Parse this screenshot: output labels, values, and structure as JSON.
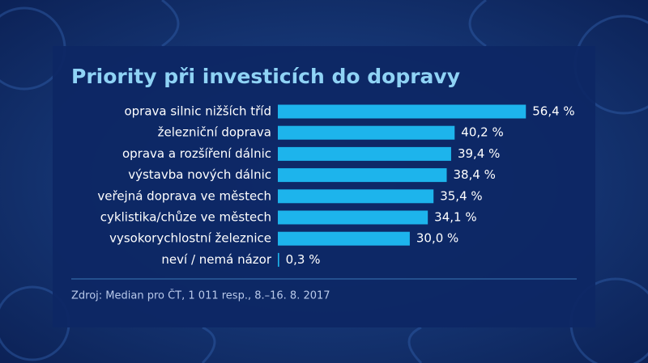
{
  "chart_data": {
    "type": "bar",
    "orientation": "horizontal",
    "title": "Priority při investicích do dopravy",
    "categories": [
      "oprava silnic nižších tříd",
      "železniční doprava",
      "oprava a rozšíření dálnic",
      "výstavba nových dálnic",
      "veřejná doprava ve městech",
      "cyklistika/chůze ve městech",
      "vysokorychlostní železnice",
      "neví / nemá názor"
    ],
    "values": [
      56.4,
      40.2,
      39.4,
      38.4,
      35.4,
      34.1,
      30.0,
      0.3
    ],
    "value_labels": [
      "56,4 %",
      "40,2 %",
      "39,4 %",
      "38,4 %",
      "35,4 %",
      "34,1 %",
      "30,0 %",
      "0,3 %"
    ],
    "color": "#1db4ec",
    "source": "Zdroj: Median pro ČT, 1 011 resp., 8.–16. 8. 2017"
  }
}
